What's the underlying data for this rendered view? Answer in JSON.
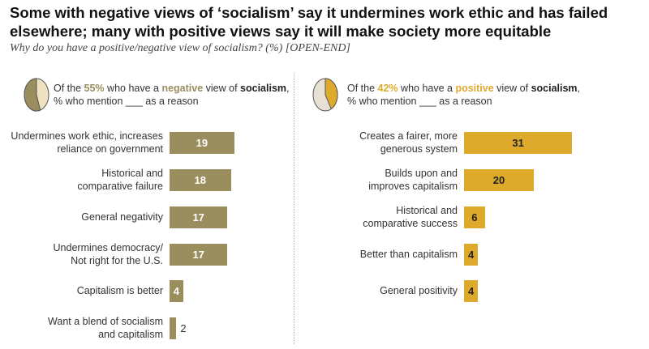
{
  "title": "Some with negative views of ‘socialism’ say it undermines work ethic and has failed elsewhere; many with positive views say it will make society more equitable",
  "subtitle": "Why do you have a positive/negative view of socialism? (%) [OPEN-END]",
  "colors": {
    "negative": "#9b8e5e",
    "positive": "#deaa2b",
    "pie_rest": "#efe2c0",
    "pie_rest_right": "#e6e1d4"
  },
  "chart_data": [
    {
      "type": "bar",
      "orientation": "horizontal",
      "panel": "negative",
      "pie_share": 55,
      "header": {
        "prefix": "Of the ",
        "pct": "55%",
        "mid": " who have a ",
        "keyword": "negative",
        "mid2": " view of ",
        "subject": "socialism",
        "end": ",",
        "line2": "% who mention ___ as a reason"
      },
      "categories": [
        "Undermines work ethic, increases reliance on government",
        "Historical and comparative failure",
        "General negativity",
        "Undermines democracy/ Not right for the U.S.",
        "Capitalism is better",
        "Want a blend of socialism and capitalism"
      ],
      "category_lines": [
        [
          "Undermines work ethic, increases",
          "reliance on government"
        ],
        [
          "Historical and",
          "comparative failure"
        ],
        [
          "General negativity"
        ],
        [
          "Undermines democracy/",
          "Not right for the U.S."
        ],
        [
          "Capitalism is better"
        ],
        [
          "Want a blend of socialism",
          "and capitalism"
        ]
      ],
      "values": [
        19,
        18,
        17,
        17,
        4,
        2
      ]
    },
    {
      "type": "bar",
      "orientation": "horizontal",
      "panel": "positive",
      "pie_share": 42,
      "header": {
        "prefix": "Of the ",
        "pct": "42%",
        "mid": " who have a ",
        "keyword": "positive",
        "mid2": " view of ",
        "subject": "socialism",
        "end": ",",
        "line2": "% who mention ___ as a reason"
      },
      "categories": [
        "Creates a fairer, more generous system",
        "Builds upon and improves capitalism",
        "Historical and comparative success",
        "Better than capitalism",
        "General positivity"
      ],
      "category_lines": [
        [
          "Creates a fairer, more",
          "generous system"
        ],
        [
          "Builds upon and",
          "improves capitalism"
        ],
        [
          "Historical and",
          "comparative success"
        ],
        [
          "Better than capitalism"
        ],
        [
          "General positivity"
        ]
      ],
      "values": [
        31,
        20,
        6,
        4,
        4
      ]
    }
  ]
}
